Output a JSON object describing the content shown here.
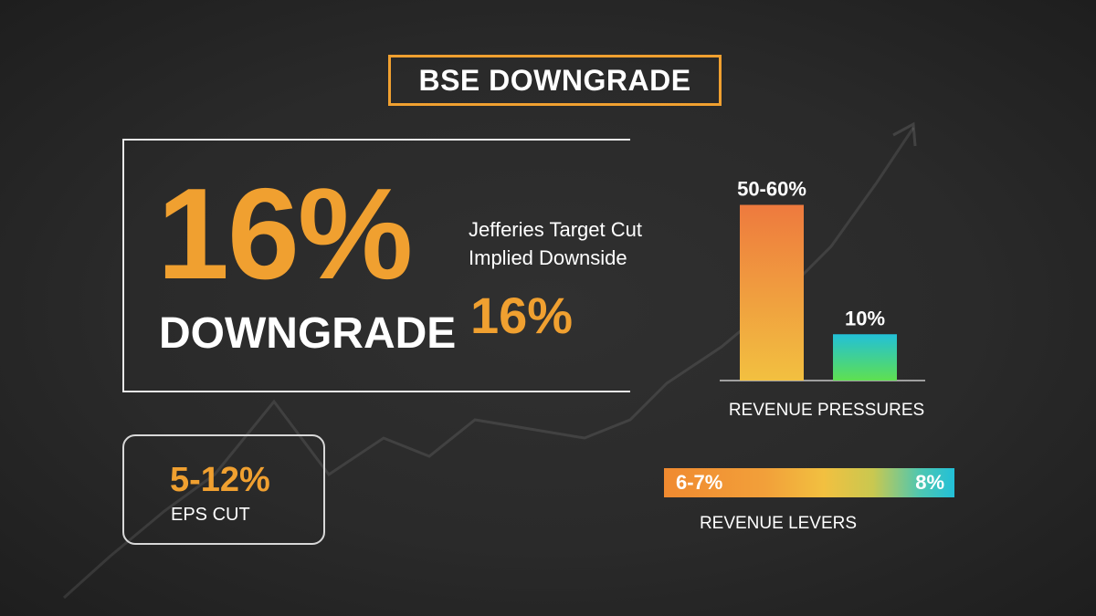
{
  "title": "BSE DOWNGRADE",
  "main": {
    "big_value": "16%",
    "big_label": "DOWNGRADE",
    "sub_line1": "Jefferies Target Cut",
    "sub_line2": "Implied Downside",
    "sub_value": "16%"
  },
  "eps": {
    "value": "5-12%",
    "label": "EPS CUT"
  },
  "chart_data": [
    {
      "type": "bar",
      "categories": [
        "",
        ""
      ],
      "data_labels": [
        "50-60%",
        "10%"
      ],
      "values": [
        55,
        10
      ],
      "title": "",
      "caption": "REVENUE PRESSURES",
      "xlabel": "",
      "ylabel": "",
      "colors": {
        "bar1_top": "#ee7a3e",
        "bar1_bottom": "#f2c040",
        "bar2_top": "#22c0d8",
        "bar2_bottom": "#5fe050"
      },
      "grid": false
    }
  ],
  "levers": {
    "left_label": "6-7%",
    "right_label": "8%",
    "caption": "REVENUE LEVERS"
  },
  "colors": {
    "accent": "#f0a030",
    "background": "#2a2a2a",
    "text": "#ffffff"
  }
}
